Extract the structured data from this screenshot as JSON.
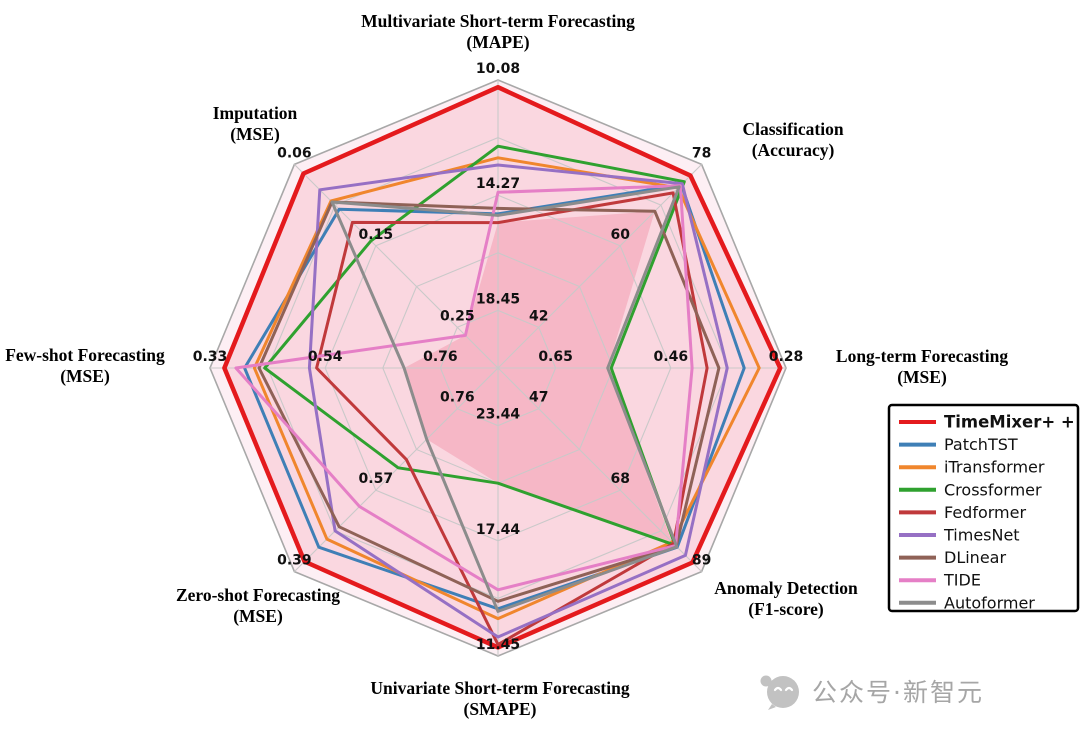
{
  "figure": {
    "description": "Radar chart comparing time-series models across 8 benchmark tasks",
    "background": "#ffffff"
  },
  "chart_data": {
    "type": "radar",
    "num_axes": 8,
    "ring_fractions": [
      0.2,
      0.4,
      0.6,
      0.8,
      1.0
    ],
    "labeled_rings": {
      "inner": 0.2,
      "middle": 0.6,
      "outer": 1.0
    },
    "grid": {
      "ring_color": "#c9c9c9",
      "outer_ring_color": "#a8a8a8",
      "base_fill": "#fdeff4",
      "band_fill": "rgba(231,56,94,0.13)",
      "core_fill": "rgba(231,56,94,0.20)"
    },
    "axes": [
      {
        "title": "Multivariate Short-term Forecasting",
        "metric": "(MAPE)",
        "ticks": {
          "outer": "10.08",
          "middle": "14.27",
          "inner": "18.45"
        }
      },
      {
        "title": "Classification",
        "metric": "(Accuracy)",
        "ticks": {
          "outer": "78",
          "middle": "60",
          "inner": "42"
        }
      },
      {
        "title": "Long-term Forecasting",
        "metric": "(MSE)",
        "ticks": {
          "outer": "0.28",
          "middle": "0.46",
          "inner": "0.65"
        }
      },
      {
        "title": "Anomaly Detection",
        "metric": "(F1-score)",
        "ticks": {
          "outer": "89",
          "middle": "68",
          "inner": "47"
        }
      },
      {
        "title": "Univariate Short-term Forecasting",
        "metric": "(SMAPE)",
        "ticks": {
          "outer": "11.45",
          "middle": "17.44",
          "inner": "23.44"
        }
      },
      {
        "title": "Zero-shot Forecasting",
        "metric": "(MSE)",
        "ticks": {
          "outer": "0.39",
          "middle": "0.57",
          "inner": "0.76"
        }
      },
      {
        "title": "Few-shot Forecasting",
        "metric": "(MSE)",
        "ticks": {
          "outer": "0.33",
          "middle": "0.54",
          "inner": "0.76"
        }
      },
      {
        "title": "Imputation",
        "metric": "(MSE)",
        "ticks": {
          "outer": "0.06",
          "middle": "0.15",
          "inner": "0.25"
        }
      }
    ],
    "series": [
      {
        "name": "TimeMixer+ +",
        "color": "#e41a1d",
        "bold": true,
        "line_width": 4.5,
        "radial_fractions": [
          0.975,
          0.945,
          0.98,
          0.955,
          0.97,
          0.95,
          0.95,
          0.955
        ],
        "values": [
          10.3,
          75.5,
          0.29,
          86.6,
          11.9,
          0.41,
          0.36,
          0.07
        ]
      },
      {
        "name": "PatchTST",
        "color": "#3f7fb6",
        "bold": false,
        "line_width": 3,
        "radial_fractions": [
          0.535,
          0.9,
          0.855,
          0.88,
          0.836,
          0.88,
          0.88,
          0.78
        ],
        "values": [
          14.9,
          73.5,
          0.35,
          82.7,
          13.9,
          0.45,
          0.39,
          0.11
        ]
      },
      {
        "name": "iTransformer",
        "color": "#f0862d",
        "bold": false,
        "line_width": 3,
        "radial_fractions": [
          0.73,
          0.885,
          0.907,
          0.855,
          0.87,
          0.84,
          0.846,
          0.82
        ],
        "values": [
          12.9,
          72.9,
          0.32,
          81.4,
          13.4,
          0.46,
          0.41,
          0.1
        ]
      },
      {
        "name": "Crossformer",
        "color": "#2fa12f",
        "bold": false,
        "line_width": 3,
        "radial_fractions": [
          0.77,
          0.915,
          0.393,
          0.87,
          0.4,
          0.49,
          0.81,
          0.624
        ],
        "values": [
          12.5,
          74.2,
          0.56,
          82.2,
          20.4,
          0.63,
          0.43,
          0.15
        ]
      },
      {
        "name": "Fedformer",
        "color": "#c0393b",
        "bold": false,
        "line_width": 3,
        "radial_fractions": [
          0.505,
          0.86,
          0.726,
          0.862,
          0.96,
          0.45,
          0.63,
          0.715
        ],
        "values": [
          15.3,
          71.7,
          0.41,
          81.8,
          12.1,
          0.64,
          0.53,
          0.13
        ]
      },
      {
        "name": "TimesNet",
        "color": "#9670c4",
        "bold": false,
        "line_width": 3,
        "radial_fractions": [
          0.705,
          0.905,
          0.796,
          0.92,
          0.934,
          0.8,
          0.655,
          0.875
        ],
        "values": [
          13.2,
          73.7,
          0.37,
          84.8,
          12.4,
          0.48,
          0.52,
          0.09
        ]
      },
      {
        "name": "DLinear",
        "color": "#8f6257",
        "bold": false,
        "line_width": 3,
        "radial_fractions": [
          0.554,
          0.77,
          0.767,
          0.875,
          0.81,
          0.78,
          0.83,
          0.815
        ],
        "values": [
          14.7,
          67.6,
          0.39,
          82.4,
          14.3,
          0.49,
          0.42,
          0.1
        ]
      },
      {
        "name": "TIDE",
        "color": "#e57fc6",
        "bold": false,
        "line_width": 3,
        "radial_fractions": [
          0.61,
          0.895,
          0.674,
          0.872,
          0.77,
          0.68,
          0.91,
          0.16
        ],
        "values": [
          14.2,
          73.3,
          0.43,
          82.3,
          14.9,
          0.54,
          0.38,
          0.26
        ]
      },
      {
        "name": "Autoformer",
        "color": "#8c8c8c",
        "bold": false,
        "line_width": 3,
        "radial_fractions": [
          0.53,
          0.89,
          0.381,
          0.878,
          0.845,
          0.35,
          0.326,
          0.815
        ],
        "values": [
          15.0,
          73.1,
          0.57,
          82.6,
          13.8,
          0.69,
          0.69,
          0.1
        ]
      }
    ],
    "legend_position": "right-lower"
  },
  "legend": {
    "items": [
      "TimeMixer+ +",
      "PatchTST",
      "iTransformer",
      "Crossformer",
      "Fedformer",
      "TimesNet",
      "DLinear",
      "TIDE",
      "Autoformer"
    ]
  },
  "watermark": {
    "text": "公众号·新智元",
    "color": "#a6a6a6",
    "icon": "wechat-public-account"
  }
}
